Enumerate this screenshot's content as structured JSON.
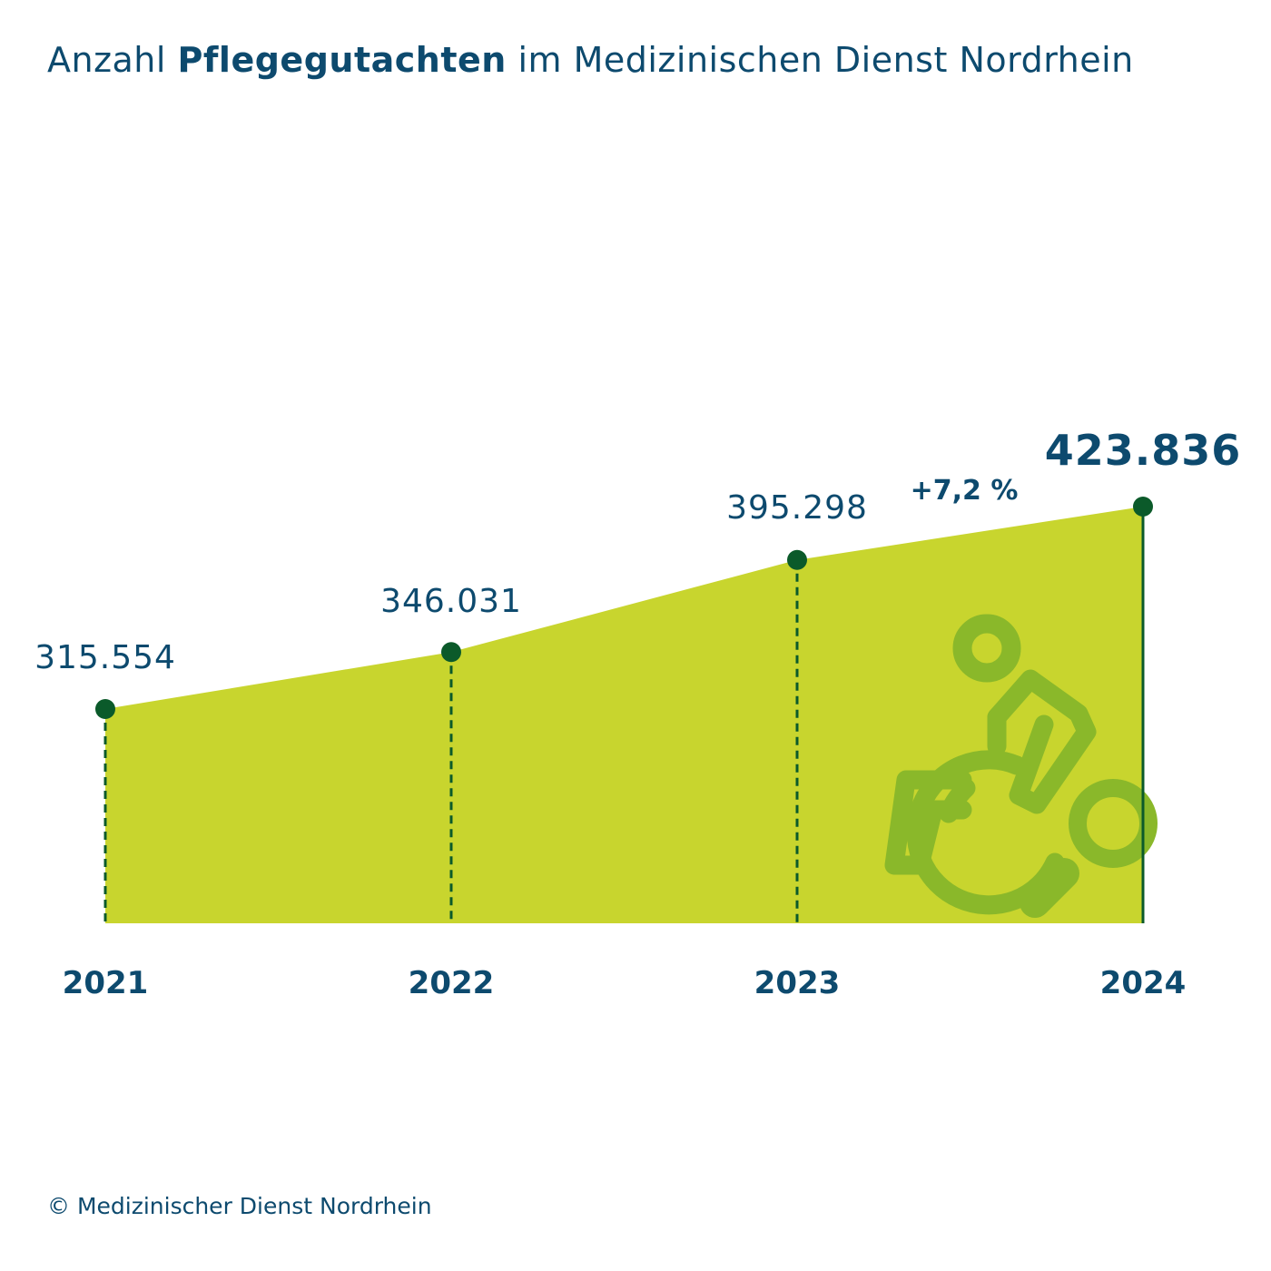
{
  "title": {
    "prefix": "Anzahl",
    "bold": "Pflegegutachten",
    "suffix": "im Medizinischen Dienst Nordrhein"
  },
  "chart_data": {
    "type": "area",
    "categories": [
      "2021",
      "2022",
      "2023",
      "2024"
    ],
    "values": [
      315554,
      346031,
      395298,
      423836
    ],
    "value_labels": [
      "315.554",
      "346.031",
      "395.298",
      "423.836"
    ],
    "annotation": "+7,2 %",
    "title": "Anzahl Pflegegutachten im Medizinischen Dienst Nordrhein",
    "xlabel": "",
    "ylabel": "",
    "ylim": [
      200000,
      460000
    ],
    "grid": false,
    "colors": {
      "area": "#c8d52e",
      "marker": "#0b5a2a",
      "dropline": "#0b5a2a",
      "text": "#0d4a6e",
      "icon": "#8ab82a"
    }
  },
  "icons": [
    "wheelchair-user-icon",
    "magnifier-icon"
  ],
  "footer": {
    "copyright": "© Medizinischer Dienst Nordrhein"
  }
}
